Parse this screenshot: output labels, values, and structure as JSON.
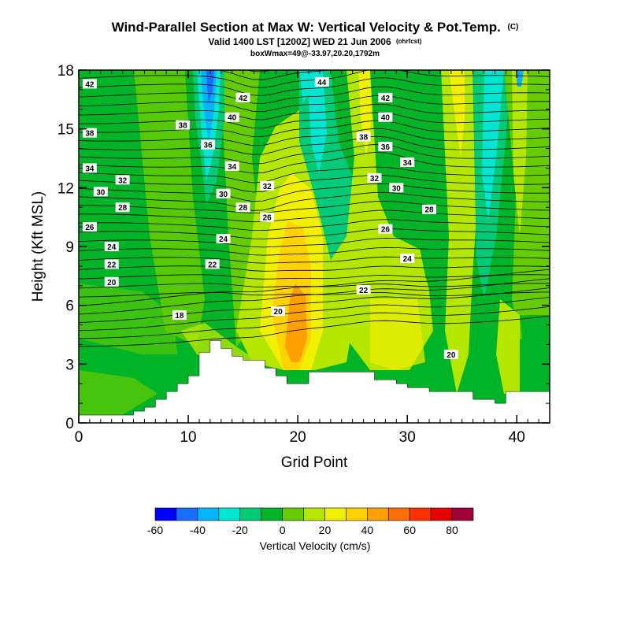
{
  "chart_data": {
    "type": "heatmap",
    "title": "Wind-Parallel Section at Max W: Vertical Velocity & Pot.Temp.",
    "title_mark": "(C)",
    "subtitle": "Valid 1400 LST [1200Z] WED 21 Jun 2006",
    "subtitle_mark": "(ohrfcst)",
    "subtitle2": "boxWmax=49@-33.97,20.20,1792m",
    "xlabel": "Grid Point",
    "ylabel": "Height (Kft MSL)",
    "xlim": [
      0,
      43
    ],
    "ylim": [
      0,
      18
    ],
    "xticks": [
      0,
      10,
      20,
      30,
      40
    ],
    "yticks": [
      0,
      3,
      6,
      9,
      12,
      15,
      18
    ],
    "colorbar": {
      "label": "Vertical Velocity (cm/s)",
      "boundaries": [
        -60,
        -50,
        -40,
        -30,
        -20,
        -10,
        0,
        10,
        20,
        30,
        40,
        50,
        60,
        70,
        80,
        90
      ],
      "tick_labels": [
        -60,
        -40,
        -20,
        0,
        20,
        40,
        60,
        80
      ],
      "colors": [
        "#0000ff",
        "#1a6eff",
        "#00b4ff",
        "#00e6d2",
        "#00cc78",
        "#00b428",
        "#64cc00",
        "#b4e600",
        "#f0f000",
        "#ffd200",
        "#ffa000",
        "#ff6e00",
        "#ff3200",
        "#e60000",
        "#a0003c"
      ]
    },
    "terrain_kft": [
      [
        0,
        0.4
      ],
      [
        5,
        0.4
      ],
      [
        5,
        0.6
      ],
      [
        6,
        0.6
      ],
      [
        6,
        0.8
      ],
      [
        7,
        0.8
      ],
      [
        7,
        1.2
      ],
      [
        8,
        1.2
      ],
      [
        8,
        1.6
      ],
      [
        9,
        1.6
      ],
      [
        9,
        2.0
      ],
      [
        10,
        2.0
      ],
      [
        10,
        2.4
      ],
      [
        11,
        2.4
      ],
      [
        11,
        3.6
      ],
      [
        12,
        3.6
      ],
      [
        12,
        4.2
      ],
      [
        13,
        4.2
      ],
      [
        13,
        3.8
      ],
      [
        14,
        3.8
      ],
      [
        14,
        3.4
      ],
      [
        15,
        3.4
      ],
      [
        15,
        3.2
      ],
      [
        17,
        3.2
      ],
      [
        17,
        2.8
      ],
      [
        18,
        2.8
      ],
      [
        18,
        2.4
      ],
      [
        19,
        2.4
      ],
      [
        19,
        2.0
      ],
      [
        21,
        2.0
      ],
      [
        21,
        2.6
      ],
      [
        27,
        2.6
      ],
      [
        27,
        2.2
      ],
      [
        29,
        2.2
      ],
      [
        29,
        2.0
      ],
      [
        30,
        2.0
      ],
      [
        30,
        1.8
      ],
      [
        32,
        1.8
      ],
      [
        32,
        1.6
      ],
      [
        36,
        1.6
      ],
      [
        36,
        1.2
      ],
      [
        38,
        1.2
      ],
      [
        38,
        1.0
      ],
      [
        39,
        1.0
      ],
      [
        39,
        1.6
      ],
      [
        43,
        1.6
      ]
    ],
    "theta_labels": [
      {
        "v": "42",
        "x": 1,
        "y": 17.3
      },
      {
        "v": "38",
        "x": 1,
        "y": 14.8
      },
      {
        "v": "34",
        "x": 1,
        "y": 13.0
      },
      {
        "v": "32",
        "x": 4,
        "y": 12.4
      },
      {
        "v": "30",
        "x": 2,
        "y": 11.8
      },
      {
        "v": "28",
        "x": 4,
        "y": 11.0
      },
      {
        "v": "26",
        "x": 1,
        "y": 10.0
      },
      {
        "v": "24",
        "x": 3,
        "y": 9.0
      },
      {
        "v": "22",
        "x": 3,
        "y": 8.1
      },
      {
        "v": "20",
        "x": 3,
        "y": 7.2
      },
      {
        "v": "38",
        "x": 9.5,
        "y": 15.2
      },
      {
        "v": "36",
        "x": 11.8,
        "y": 14.2
      },
      {
        "v": "18",
        "x": 9.2,
        "y": 5.5
      },
      {
        "v": "40",
        "x": 14,
        "y": 15.6
      },
      {
        "v": "42",
        "x": 15,
        "y": 16.6
      },
      {
        "v": "34",
        "x": 14,
        "y": 13.1
      },
      {
        "v": "30",
        "x": 13.2,
        "y": 11.7
      },
      {
        "v": "28",
        "x": 15,
        "y": 11.0
      },
      {
        "v": "24",
        "x": 13.2,
        "y": 9.4
      },
      {
        "v": "22",
        "x": 12.2,
        "y": 8.1
      },
      {
        "v": "32",
        "x": 17.2,
        "y": 12.1
      },
      {
        "v": "26",
        "x": 17.2,
        "y": 10.5
      },
      {
        "v": "20",
        "x": 18.2,
        "y": 5.7
      },
      {
        "v": "44",
        "x": 22.2,
        "y": 17.4
      },
      {
        "v": "42",
        "x": 28,
        "y": 16.6
      },
      {
        "v": "40",
        "x": 28,
        "y": 15.6
      },
      {
        "v": "38",
        "x": 26,
        "y": 14.6
      },
      {
        "v": "36",
        "x": 28,
        "y": 14.1
      },
      {
        "v": "34",
        "x": 30,
        "y": 13.3
      },
      {
        "v": "32",
        "x": 27,
        "y": 12.5
      },
      {
        "v": "30",
        "x": 29,
        "y": 12.0
      },
      {
        "v": "28",
        "x": 32,
        "y": 10.9
      },
      {
        "v": "26",
        "x": 28,
        "y": 9.9
      },
      {
        "v": "24",
        "x": 30,
        "y": 8.4
      },
      {
        "v": "22",
        "x": 26,
        "y": 6.8
      },
      {
        "v": "20",
        "x": 34,
        "y": 3.5
      }
    ]
  }
}
